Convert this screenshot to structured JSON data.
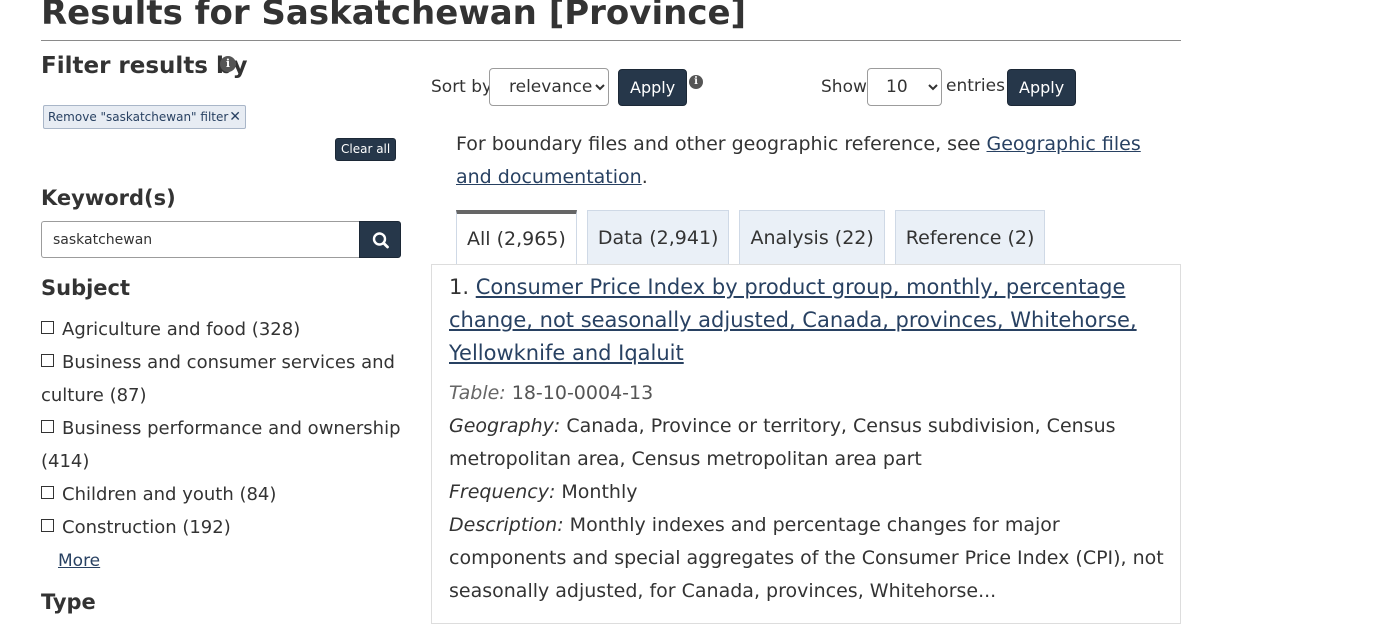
{
  "page": {
    "title": "Results for Saskatchewan [Province]"
  },
  "filters": {
    "heading": "Filter results by",
    "info_glyph": "i",
    "remove_chip": {
      "label": "Remove \"saskatchewan\" filter",
      "icon": "close-icon",
      "glyph": "✕"
    },
    "clear_all": "Clear all"
  },
  "keyword": {
    "heading": "Keyword(s)",
    "value": "saskatchewan",
    "search_icon": "search-icon"
  },
  "subject": {
    "heading": "Subject",
    "items": [
      {
        "label": "Agriculture and food (328)"
      },
      {
        "label": "Business and consumer services and culture (87)"
      },
      {
        "label": "Business performance and ownership (414)"
      },
      {
        "label": "Children and youth (84)"
      },
      {
        "label": "Construction (192)"
      }
    ],
    "more": "More"
  },
  "type": {
    "heading": "Type"
  },
  "sort": {
    "label": "Sort by",
    "selected": "relevance",
    "apply": "Apply",
    "info_glyph": "i"
  },
  "show": {
    "label": "Show",
    "selected": "10",
    "suffix": "entries",
    "apply": "Apply"
  },
  "notice": {
    "text": "For boundary files and other geographic reference, see ",
    "link": "Geographic files and documentation",
    "end": "."
  },
  "tabs": [
    {
      "label": "All (2,965)",
      "active": true
    },
    {
      "label": "Data (2,941)",
      "active": false
    },
    {
      "label": "Analysis (22)",
      "active": false
    },
    {
      "label": "Reference (2)",
      "active": false
    }
  ],
  "results": [
    {
      "number": "1.",
      "title": "Consumer Price Index by product group, monthly, percentage change, not seasonally adjusted, Canada, provinces, Whitehorse, Yellowknife and Iqaluit",
      "table_label": "Table:",
      "table_value": "18-10-0004-13",
      "geography_label": "Geography:",
      "geography_value": "Canada, Province or territory, Census subdivision, Census metropolitan area, Census metropolitan area part",
      "frequency_label": "Frequency:",
      "frequency_value": "Monthly",
      "description_label": "Description:",
      "description_value": "Monthly indexes and percentage changes for major components and special aggregates of the Consumer Price Index (CPI), not seasonally adjusted, for Canada, provinces, Whitehorse..."
    }
  ],
  "colors": {
    "primary_button": "#26374a",
    "link": "#284162",
    "tab_bg": "#eaf0f7"
  }
}
